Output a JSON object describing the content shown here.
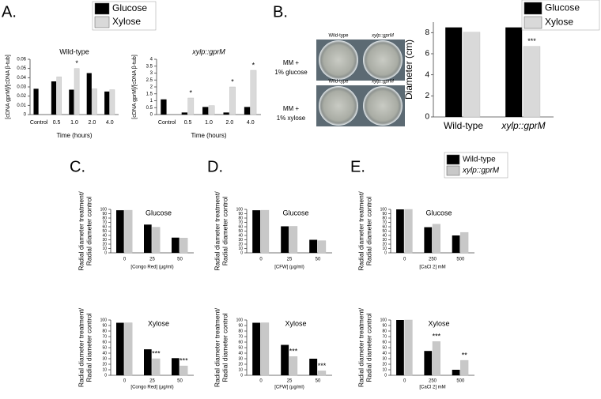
{
  "figure": {
    "panel_labels": [
      "A.",
      "B.",
      "C.",
      "D.",
      "E."
    ],
    "plate_labels": [
      [
        "Wild-type",
        "xylp::gprM"
      ],
      [
        "Wild-type",
        "xylp::gprM"
      ]
    ],
    "plate_rows": [
      [
        "MM +",
        "1% glucose"
      ],
      [
        "MM +",
        "1% xylose"
      ]
    ]
  },
  "chart_data": [
    {
      "type": "bar",
      "title": "Wild-type",
      "y_label": [
        "[cDNA gprM]/[cDNA β-tub]"
      ],
      "x_label": "Time (hours)",
      "categories": [
        "Control",
        "0.5",
        "1.0",
        "2.0",
        "4.0"
      ],
      "series": [
        {
          "name": "Glucose",
          "color": "#000000",
          "values": [
            0.028,
            0.036,
            0.027,
            0.045,
            0.025
          ]
        },
        {
          "name": "Xylose",
          "color": "#d9d9d9",
          "values": [
            null,
            0.041,
            0.05,
            0.028,
            0.027
          ]
        }
      ],
      "ylim": [
        0,
        0.06
      ],
      "yticks": [
        0,
        0.01,
        0.02,
        0.03,
        0.04,
        0.05,
        0.06
      ],
      "annotations": [
        {
          "text": "*",
          "x": "1.0",
          "series": "Xylose"
        }
      ]
    },
    {
      "type": "bar",
      "title": "xylp::gprM",
      "y_label": [
        "[cDNA gprM]/[cDNA β-tub]"
      ],
      "x_label": "Time (hours)",
      "categories": [
        "Control",
        "0.5",
        "1.0",
        "2.0",
        "4.0"
      ],
      "series": [
        {
          "name": "Glucose",
          "color": "#000000",
          "values": [
            1.1,
            0.15,
            0.55,
            0.15,
            0.55
          ]
        },
        {
          "name": "Xylose",
          "color": "#d9d9d9",
          "values": [
            null,
            1.2,
            0.65,
            2.0,
            3.2
          ]
        }
      ],
      "ylim": [
        0,
        4
      ],
      "yticks": [
        0,
        0.5,
        1,
        1.5,
        2,
        2.5,
        3,
        3.5,
        4
      ],
      "annotations": [
        {
          "text": "*",
          "x": "0.5",
          "series": "Xylose"
        },
        {
          "text": "*",
          "x": "2.0",
          "series": "Xylose"
        },
        {
          "text": "*",
          "x": "4.0",
          "series": "Xylose"
        }
      ]
    },
    {
      "type": "bar",
      "y_label": [
        "Diameter (cm)"
      ],
      "categories": [
        "Wild-type",
        "xylp::gprM"
      ],
      "series": [
        {
          "name": "Glucose",
          "color": "#000000",
          "values": [
            8.5,
            8.5
          ]
        },
        {
          "name": "Xylose",
          "color": "#d9d9d9",
          "values": [
            8.05,
            6.7
          ]
        }
      ],
      "ylim": [
        0,
        9
      ],
      "yticks": [
        0,
        2,
        4,
        6,
        8
      ],
      "annotations": [
        {
          "text": "***",
          "x": "xylp::gprM",
          "series": "Xylose"
        }
      ]
    },
    {
      "type": "bar",
      "title": "Glucose",
      "y_label": [
        "Radial diameter treatment/",
        "Radial diameter control"
      ],
      "x_label": "[Congo Red] (µg/ml)",
      "categories": [
        "0",
        "25",
        "50"
      ],
      "series": [
        {
          "name": "Wild-type",
          "color": "#000000",
          "values": [
            98,
            65,
            35
          ]
        },
        {
          "name": "xylp::gprM",
          "color": "#c8c8c8",
          "values": [
            98,
            59,
            34
          ]
        }
      ],
      "ylim": [
        0,
        100
      ],
      "yticks": [
        0,
        10,
        20,
        30,
        40,
        50,
        60,
        70,
        80,
        90,
        100
      ],
      "annotations": []
    },
    {
      "type": "bar",
      "title": "Xylose",
      "y_label": [
        "Radial diameter treatment/",
        "Radial diameter control"
      ],
      "x_label": "[Congo Red] (µg/ml)",
      "categories": [
        "0",
        "25",
        "50"
      ],
      "series": [
        {
          "name": "Wild-type",
          "color": "#000000",
          "values": [
            95,
            47,
            31
          ]
        },
        {
          "name": "xylp::gprM",
          "color": "#c8c8c8",
          "values": [
            95,
            30,
            17
          ]
        }
      ],
      "ylim": [
        0,
        100
      ],
      "yticks": [
        0,
        10,
        20,
        30,
        40,
        50,
        60,
        70,
        80,
        90,
        100
      ],
      "annotations": [
        {
          "text": "***",
          "x": "25",
          "series": "xylp::gprM"
        },
        {
          "text": "***",
          "x": "50",
          "series": "xylp::gprM"
        }
      ]
    },
    {
      "type": "bar",
      "title": "Glucose",
      "y_label": [
        "Radial diameter treatment/",
        "Radial diameter control"
      ],
      "x_label": "[CFW] (µg/ml)",
      "categories": [
        "0",
        "25",
        "50"
      ],
      "series": [
        {
          "name": "Wild-type",
          "color": "#000000",
          "values": [
            98,
            61,
            30
          ]
        },
        {
          "name": "xylp::gprM",
          "color": "#c8c8c8",
          "values": [
            98,
            61,
            28
          ]
        }
      ],
      "ylim": [
        0,
        100
      ],
      "yticks": [
        0,
        10,
        20,
        30,
        40,
        50,
        60,
        70,
        80,
        90,
        100
      ],
      "annotations": []
    },
    {
      "type": "bar",
      "title": "Xylose",
      "y_label": [
        "Radial diameter treatment/",
        "Radial diameter control"
      ],
      "x_label": "[CFW] (µg/ml)",
      "categories": [
        "0",
        "25",
        "50"
      ],
      "series": [
        {
          "name": "Wild-type",
          "color": "#000000",
          "values": [
            95,
            55,
            30
          ]
        },
        {
          "name": "xylp::gprM",
          "color": "#c8c8c8",
          "values": [
            95,
            34,
            8
          ]
        }
      ],
      "ylim": [
        0,
        100
      ],
      "yticks": [
        0,
        10,
        20,
        30,
        40,
        50,
        60,
        70,
        80,
        90,
        100
      ],
      "annotations": [
        {
          "text": "***",
          "x": "25",
          "series": "xylp::gprM"
        },
        {
          "text": "***",
          "x": "50",
          "series": "xylp::gprM"
        }
      ]
    },
    {
      "type": "bar",
      "title": "Glucose",
      "y_label": [
        "Radial diameter treatment/",
        "Radial diameter control"
      ],
      "x_label": "[CaCl 2] mM",
      "categories": [
        "0",
        "250",
        "500"
      ],
      "series": [
        {
          "name": "Wild-type",
          "color": "#000000",
          "values": [
            100,
            59,
            40
          ]
        },
        {
          "name": "xylp::gprM",
          "color": "#c8c8c8",
          "values": [
            100,
            66,
            47
          ]
        }
      ],
      "ylim": [
        0,
        100
      ],
      "yticks": [
        0,
        10,
        20,
        30,
        40,
        50,
        60,
        70,
        80,
        90,
        100
      ],
      "annotations": []
    },
    {
      "type": "bar",
      "title": "Xylose",
      "y_label": [
        "Radial diameter treatment/",
        "Radial diameter control"
      ],
      "x_label": "[CaCl 2] mM",
      "categories": [
        "0",
        "250",
        "500"
      ],
      "series": [
        {
          "name": "Wild-type",
          "color": "#000000",
          "values": [
            100,
            44,
            10
          ]
        },
        {
          "name": "xylp::gprM",
          "color": "#c8c8c8",
          "values": [
            100,
            61,
            27
          ]
        }
      ],
      "ylim": [
        0,
        100
      ],
      "yticks": [
        0,
        10,
        20,
        30,
        40,
        50,
        60,
        70,
        80,
        90,
        100
      ],
      "annotations": [
        {
          "text": "***",
          "x": "250",
          "series": "xylp::gprM"
        },
        {
          "text": "**",
          "x": "500",
          "series": "xylp::gprM"
        }
      ]
    }
  ]
}
